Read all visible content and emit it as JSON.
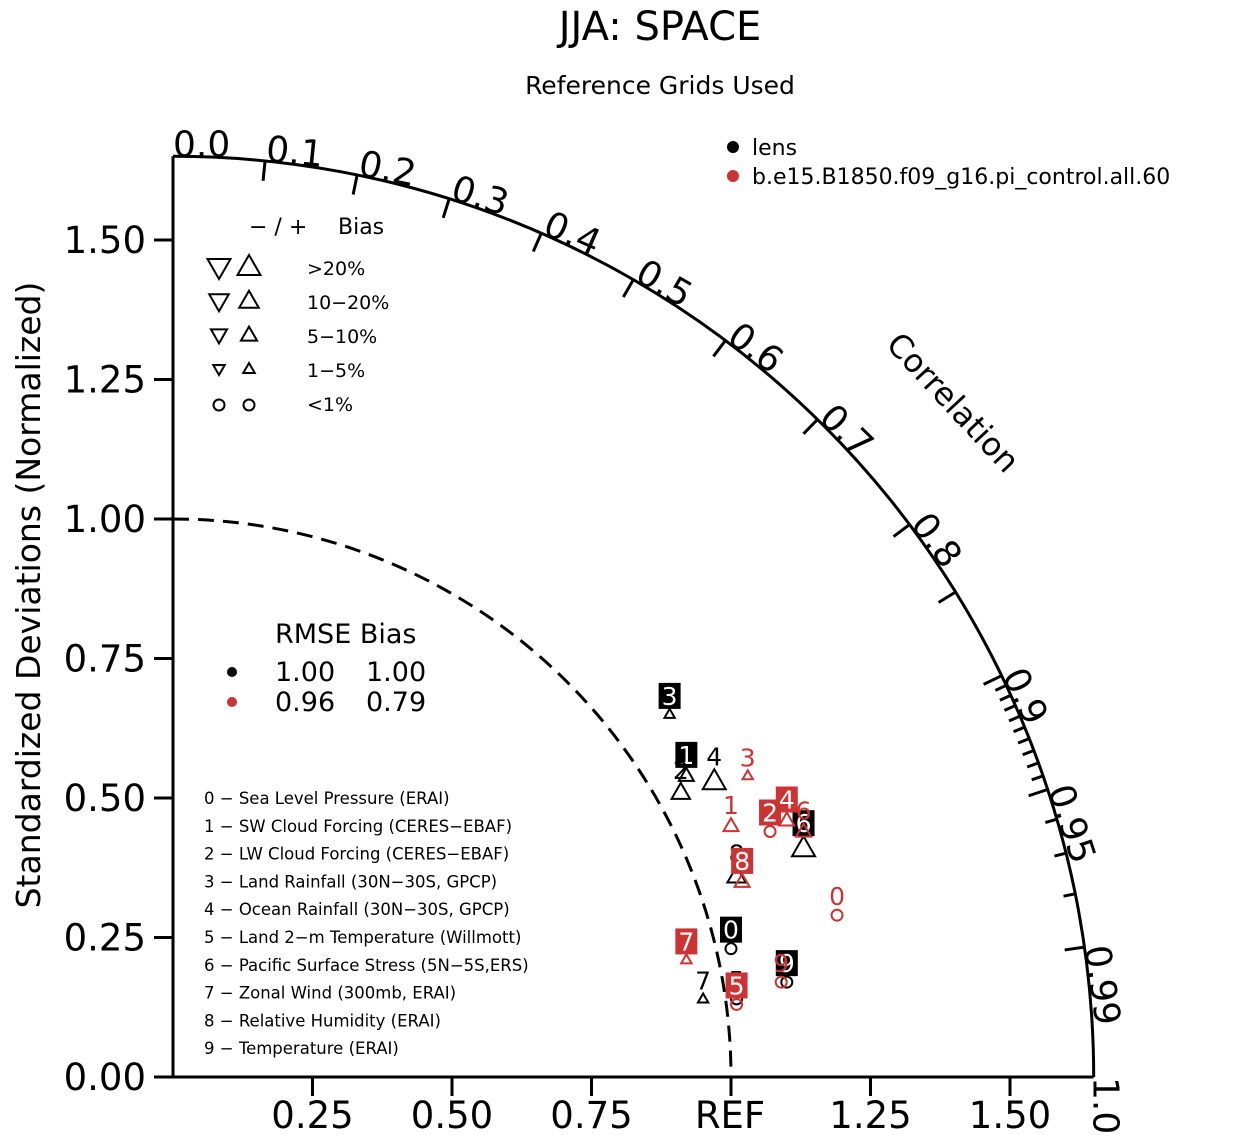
{
  "title": "JJA: SPACE",
  "subtitle": "Reference Grids Used",
  "colors": {
    "case0": "#000000",
    "case1": "#cc3333"
  },
  "chart_data": {
    "type": "scatter",
    "subtype": "taylor-diagram",
    "ylabel": "Standardized Deviations (Normalized)",
    "arc_label": "Correlation",
    "ref_label": "REF",
    "std_max": 1.65,
    "y_ticks": [
      "0.00",
      "0.25",
      "0.50",
      "0.75",
      "1.00",
      "1.25",
      "1.50"
    ],
    "x_ticks": [
      "0.25",
      "0.50",
      "0.75",
      "1.25",
      "1.50"
    ],
    "corr_labels": [
      "0.0",
      "0.1",
      "0.2",
      "0.3",
      "0.4",
      "0.5",
      "0.6",
      "0.7",
      "0.8",
      "0.9",
      "0.95",
      "0.99",
      "1.0"
    ],
    "legend_cases": [
      "lens",
      "b.e15.B1850.f09_g16.pi_control.all.60"
    ],
    "bias_legend": {
      "header_sign": "− / +",
      "header_bias": "Bias",
      "rows": [
        ">20%",
        "10−20%",
        "5−10%",
        "1−5%",
        "<1%"
      ]
    },
    "rmse_table": {
      "header": "RMSE Bias",
      "rows": [
        {
          "rmse": "1.00",
          "bias": "1.00"
        },
        {
          "rmse": "0.96",
          "bias": "0.79"
        }
      ]
    },
    "variables": [
      "0 − Sea Level Pressure (ERAI)",
      "1 − SW Cloud Forcing (CERES−EBAF)",
      "2 − LW Cloud Forcing (CERES−EBAF)",
      "3 − Land Rainfall (30N−30S, GPCP)",
      "4 − Ocean Rainfall (30N−30S, GPCP)",
      "5 − Land 2−m Temperature (Willmott)",
      "6 − Pacific Surface Stress (5N−5S,ERS)",
      "7 − Zonal Wind (300mb, ERAI)",
      "8 − Relative Humidity (ERAI)",
      "9 − Temperature (ERAI)"
    ],
    "series": [
      {
        "name": "lens",
        "points": [
          {
            "id": "0",
            "x": 1.0,
            "y": 0.23,
            "marker": "circle",
            "boxed": true
          },
          {
            "id": "1",
            "x": 0.92,
            "y": 0.54,
            "marker": "up",
            "size": "small",
            "boxed": true
          },
          {
            "id": "2",
            "x": 0.91,
            "y": 0.51,
            "marker": "up",
            "size": "medium",
            "boxed": false
          },
          {
            "id": "3",
            "x": 0.89,
            "y": 0.65,
            "marker": "up",
            "size": "tiny",
            "boxed": true
          },
          {
            "id": "4",
            "x": 0.97,
            "y": 0.53,
            "marker": "up",
            "size": "large",
            "boxed": false
          },
          {
            "id": "5",
            "x": 1.01,
            "y": 0.14,
            "marker": "circle",
            "boxed": false
          },
          {
            "id": "6",
            "x": 1.13,
            "y": 0.41,
            "marker": "up",
            "size": "large",
            "boxed": true
          },
          {
            "id": "7",
            "x": 0.95,
            "y": 0.14,
            "marker": "up",
            "size": "tiny",
            "boxed": false
          },
          {
            "id": "8",
            "x": 1.01,
            "y": 0.36,
            "marker": "up",
            "size": "medium",
            "boxed": false
          },
          {
            "id": "9",
            "x": 1.1,
            "y": 0.17,
            "marker": "circle",
            "boxed": true
          }
        ]
      },
      {
        "name": "b.e15.B1850.f09_g16.pi_control.all.60",
        "points": [
          {
            "id": "0",
            "x": 1.19,
            "y": 0.29,
            "marker": "circle",
            "boxed": false
          },
          {
            "id": "1",
            "x": 1.0,
            "y": 0.45,
            "marker": "up",
            "size": "small",
            "boxed": false
          },
          {
            "id": "2",
            "x": 1.07,
            "y": 0.44,
            "marker": "circle",
            "boxed": true
          },
          {
            "id": "3",
            "x": 1.03,
            "y": 0.54,
            "marker": "up",
            "size": "tiny",
            "boxed": false
          },
          {
            "id": "4",
            "x": 1.1,
            "y": 0.46,
            "marker": "up",
            "size": "small",
            "boxed": true
          },
          {
            "id": "5",
            "x": 1.01,
            "y": 0.13,
            "marker": "circle",
            "boxed": true
          },
          {
            "id": "6",
            "x": 1.13,
            "y": 0.44,
            "marker": "up",
            "size": "small",
            "boxed": false
          },
          {
            "id": "7",
            "x": 0.92,
            "y": 0.21,
            "marker": "up",
            "size": "tiny",
            "boxed": true
          },
          {
            "id": "8",
            "x": 1.02,
            "y": 0.35,
            "marker": "up",
            "size": "small",
            "boxed": true
          },
          {
            "id": "9",
            "x": 1.09,
            "y": 0.17,
            "marker": "circle",
            "boxed": false
          }
        ]
      }
    ]
  }
}
